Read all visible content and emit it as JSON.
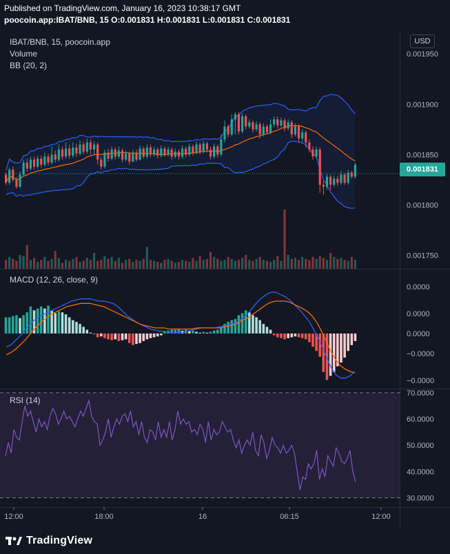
{
  "header": {
    "published": "Published on TradingView.com, January 16, 2023 10:38:17 GMT",
    "symbol_line": "poocoin.app:IBAT/BNB, 15  O:0.001831  H:0.001831  L:0.001831  C:0.001831"
  },
  "legend": {
    "symbol": "IBAT/BNB, 15, poocoin.app",
    "volume": "Volume",
    "bb": "BB (20, 2)",
    "macd": "MACD (12, 26, close, 9)",
    "rsi": "RSI (14)"
  },
  "currency_button": "USD",
  "last_price": "0.001831",
  "footer": {
    "brand": "TradingView"
  },
  "colors": {
    "background": "#131722",
    "up": "#26a69a",
    "down": "#ef5350",
    "bb_band": "#2962ff",
    "bb_basis": "#ff6d00",
    "macd_line": "#2962ff",
    "signal_line": "#ff6d00",
    "rsi_line": "#7e57c2",
    "rsi_band": "#2a2440"
  },
  "chart_data": [
    {
      "type": "candlestick",
      "title": "IBAT/BNB, 15, poocoin.app",
      "y_ticks": [
        "0.001950",
        "0.001900",
        "0.001850",
        "0.001800",
        "0.001750"
      ],
      "x_ticks": [
        "12:00",
        "18:00",
        "16",
        "06:15",
        "12:00"
      ],
      "ylim": [
        0.00174,
        0.00197
      ],
      "last_price": 0.001831,
      "candles": [
        [
          0.00183,
          0.001822,
          0.001832,
          0.00182
        ],
        [
          0.001822,
          0.001835,
          0.001837,
          0.00182
        ],
        [
          0.001835,
          0.001825,
          0.001838,
          0.001823
        ],
        [
          0.001825,
          0.001818,
          0.001828,
          0.001816
        ],
        [
          0.001818,
          0.00183,
          0.001833,
          0.001817
        ],
        [
          0.00183,
          0.001842,
          0.001845,
          0.001828
        ],
        [
          0.001842,
          0.001836,
          0.001846,
          0.001833
        ],
        [
          0.001836,
          0.001845,
          0.001848,
          0.001834
        ],
        [
          0.001845,
          0.001838,
          0.001848,
          0.001835
        ],
        [
          0.001838,
          0.001846,
          0.001849,
          0.001836
        ],
        [
          0.001846,
          0.00184,
          0.001849,
          0.001837
        ],
        [
          0.00184,
          0.001848,
          0.001852,
          0.001838
        ],
        [
          0.001848,
          0.001842,
          0.001851,
          0.001839
        ],
        [
          0.001842,
          0.00185,
          0.001858,
          0.00184
        ],
        [
          0.00185,
          0.001845,
          0.001854,
          0.001842
        ],
        [
          0.001845,
          0.001855,
          0.00186,
          0.001843
        ],
        [
          0.001855,
          0.001848,
          0.001858,
          0.001845
        ],
        [
          0.001848,
          0.001856,
          0.001862,
          0.001846
        ],
        [
          0.001856,
          0.001849,
          0.00186,
          0.001846
        ],
        [
          0.001849,
          0.001857,
          0.001862,
          0.001847
        ],
        [
          0.001857,
          0.001851,
          0.001861,
          0.001848
        ],
        [
          0.001851,
          0.00186,
          0.001864,
          0.001849
        ],
        [
          0.00186,
          0.001853,
          0.001863,
          0.00185
        ],
        [
          0.001853,
          0.001862,
          0.001866,
          0.001851
        ],
        [
          0.001862,
          0.001855,
          0.001865,
          0.00185
        ],
        [
          0.001855,
          0.00186,
          0.001863,
          0.00185
        ],
        [
          0.00186,
          0.001845,
          0.001862,
          0.00184
        ],
        [
          0.001845,
          0.001838,
          0.001848,
          0.001835
        ],
        [
          0.001838,
          0.001852,
          0.001855,
          0.001836
        ],
        [
          0.001852,
          0.001846,
          0.001856,
          0.001843
        ],
        [
          0.001846,
          0.001855,
          0.001858,
          0.001844
        ],
        [
          0.001855,
          0.001848,
          0.001857,
          0.001845
        ],
        [
          0.001848,
          0.001854,
          0.001858,
          0.001846
        ],
        [
          0.001854,
          0.001845,
          0.001856,
          0.001842
        ],
        [
          0.001845,
          0.001851,
          0.001854,
          0.001843
        ],
        [
          0.001851,
          0.001843,
          0.001853,
          0.00184
        ],
        [
          0.001843,
          0.001852,
          0.001855,
          0.001842
        ],
        [
          0.001852,
          0.001845,
          0.001855,
          0.001843
        ],
        [
          0.001845,
          0.001856,
          0.001859,
          0.001844
        ],
        [
          0.001856,
          0.001848,
          0.001858,
          0.001846
        ],
        [
          0.001848,
          0.001857,
          0.00186,
          0.001846
        ],
        [
          0.001857,
          0.00185,
          0.00186,
          0.001847
        ],
        [
          0.00185,
          0.001855,
          0.001858,
          0.001848
        ],
        [
          0.001855,
          0.001849,
          0.001857,
          0.001846
        ],
        [
          0.001849,
          0.001856,
          0.001859,
          0.001847
        ],
        [
          0.001856,
          0.00185,
          0.001858,
          0.001848
        ],
        [
          0.00185,
          0.001855,
          0.001858,
          0.001848
        ],
        [
          0.001855,
          0.001848,
          0.001857,
          0.001845
        ],
        [
          0.001848,
          0.001853,
          0.001856,
          0.001846
        ],
        [
          0.001853,
          0.001848,
          0.001855,
          0.001845
        ],
        [
          0.001848,
          0.001856,
          0.001859,
          0.001846
        ],
        [
          0.001856,
          0.00185,
          0.001858,
          0.001847
        ],
        [
          0.00185,
          0.001858,
          0.001861,
          0.001848
        ],
        [
          0.001858,
          0.001852,
          0.00186,
          0.001849
        ],
        [
          0.001852,
          0.00186,
          0.001863,
          0.00185
        ],
        [
          0.00186,
          0.001853,
          0.001862,
          0.00185
        ],
        [
          0.001853,
          0.001861,
          0.001864,
          0.001851
        ],
        [
          0.001861,
          0.001855,
          0.001863,
          0.001852
        ],
        [
          0.001855,
          0.001848,
          0.001858,
          0.001845
        ],
        [
          0.001848,
          0.001858,
          0.001861,
          0.001846
        ],
        [
          0.001858,
          0.00185,
          0.00186,
          0.001847
        ],
        [
          0.00185,
          0.001865,
          0.00187,
          0.001848
        ],
        [
          0.001865,
          0.001878,
          0.001884,
          0.001862
        ],
        [
          0.001878,
          0.00187,
          0.00188,
          0.001867
        ],
        [
          0.00187,
          0.001885,
          0.00189,
          0.001868
        ],
        [
          0.001885,
          0.00189,
          0.001892,
          0.00187
        ],
        [
          0.00189,
          0.001873,
          0.001892,
          0.00187
        ],
        [
          0.001873,
          0.001888,
          0.001891,
          0.001871
        ],
        [
          0.001888,
          0.001878,
          0.00189,
          0.001875
        ],
        [
          0.001878,
          0.001882,
          0.001885,
          0.001876
        ],
        [
          0.001882,
          0.001875,
          0.001884,
          0.001872
        ],
        [
          0.001875,
          0.00188,
          0.001883,
          0.001873
        ],
        [
          0.00188,
          0.00187,
          0.001882,
          0.001866
        ],
        [
          0.00187,
          0.001878,
          0.001881,
          0.001868
        ],
        [
          0.001878,
          0.001872,
          0.00188,
          0.00187
        ],
        [
          0.001872,
          0.00188,
          0.001885,
          0.00187
        ],
        [
          0.00188,
          0.001885,
          0.001888,
          0.001877
        ],
        [
          0.001885,
          0.001879,
          0.001888,
          0.001876
        ],
        [
          0.001879,
          0.001884,
          0.001887,
          0.001877
        ],
        [
          0.001884,
          0.001876,
          0.001886,
          0.001873
        ],
        [
          0.001876,
          0.001882,
          0.001885,
          0.001874
        ],
        [
          0.001882,
          0.00187,
          0.001884,
          0.001866
        ],
        [
          0.00187,
          0.001878,
          0.001881,
          0.001868
        ],
        [
          0.001878,
          0.001866,
          0.00188,
          0.001862
        ],
        [
          0.001866,
          0.001872,
          0.001875,
          0.001862
        ],
        [
          0.001872,
          0.001862,
          0.001874,
          0.001857
        ],
        [
          0.001862,
          0.001855,
          0.001865,
          0.001852
        ],
        [
          0.001855,
          0.001848,
          0.001858,
          0.001845
        ],
        [
          0.001848,
          0.001855,
          0.001858,
          0.001846
        ],
        [
          0.001855,
          0.00182,
          0.001857,
          0.001812
        ],
        [
          0.00182,
          0.001818,
          0.001824,
          0.00181
        ],
        [
          0.001818,
          0.001828,
          0.001831,
          0.001815
        ],
        [
          0.001828,
          0.00182,
          0.00183,
          0.001815
        ],
        [
          0.00182,
          0.001826,
          0.001829,
          0.001818
        ],
        [
          0.001826,
          0.001822,
          0.001829,
          0.001819
        ],
        [
          0.001822,
          0.00183,
          0.001834,
          0.00182
        ],
        [
          0.00183,
          0.001822,
          0.001832,
          0.00182
        ],
        [
          0.001822,
          0.001832,
          0.001835,
          0.00182
        ],
        [
          0.001832,
          0.001828,
          0.001834,
          0.001826
        ],
        [
          0.001828,
          0.00184,
          0.001842,
          0.001826
        ]
      ],
      "volume": [
        9,
        12,
        10,
        8,
        14,
        13,
        24,
        9,
        11,
        7,
        9,
        12,
        8,
        10,
        18,
        11,
        6,
        9,
        8,
        10,
        12,
        7,
        8,
        11,
        9,
        16,
        8,
        9,
        13,
        10,
        12,
        8,
        11,
        6,
        9,
        10,
        7,
        9,
        8,
        10,
        22,
        9,
        8,
        7,
        6,
        9,
        10,
        8,
        6,
        7,
        9,
        8,
        7,
        11,
        8,
        13,
        9,
        10,
        17,
        12,
        10,
        8,
        9,
        12,
        10,
        8,
        9,
        11,
        14,
        9,
        8,
        10,
        12,
        9,
        8,
        7,
        9,
        13,
        8,
        60,
        14,
        10,
        11,
        9,
        12,
        10,
        9,
        12,
        10,
        13,
        11,
        9,
        16,
        12,
        10,
        11,
        9,
        8,
        12,
        9
      ]
    },
    {
      "type": "macd",
      "title": "MACD (12, 26, close, 9)",
      "y_ticks": [
        "0.0000",
        "0.0000",
        "0.0000",
        "−0.0000",
        "−0.0000"
      ],
      "histogram": [
        0.56,
        0.56,
        0.6,
        0.63,
        0.53,
        0.63,
        0.73,
        0.93,
        0.8,
        0.86,
        0.93,
        0.86,
        0.96,
        0.8,
        0.7,
        0.76,
        0.73,
        0.66,
        0.56,
        0.46,
        0.4,
        0.33,
        0.23,
        0.13,
        0.03,
        -0.03,
        -0.13,
        -0.1,
        -0.16,
        -0.2,
        -0.23,
        -0.2,
        -0.26,
        -0.23,
        -0.2,
        -0.33,
        -0.4,
        -0.36,
        -0.33,
        -0.26,
        -0.2,
        -0.16,
        -0.13,
        -0.1,
        -0.06,
        0.06,
        0.1,
        0.13,
        0.13,
        0.16,
        0.1,
        0.13,
        0.1,
        0.1,
        0.06,
        0.03,
        0.06,
        0.03,
        0.06,
        0.1,
        0.13,
        0.2,
        0.33,
        0.4,
        0.46,
        0.5,
        0.63,
        0.7,
        0.8,
        0.73,
        0.63,
        0.56,
        0.46,
        0.33,
        0.23,
        0.13,
        -0.06,
        -0.13,
        -0.16,
        -0.2,
        -0.16,
        -0.13,
        -0.1,
        -0.13,
        -0.16,
        -0.2,
        -0.3,
        -0.46,
        -0.6,
        -0.8,
        -1.33,
        -1.6,
        -1.46,
        -1.33,
        -1.13,
        -1.0,
        -0.83,
        -0.6,
        -0.4,
        -0.26
      ],
      "macd": [
        -1.2,
        -1.0,
        -0.6,
        -0.2,
        0.3,
        0.8,
        1.2,
        1.5,
        1.7,
        1.9,
        2.1,
        2.3,
        2.5,
        2.7,
        2.9,
        3.0,
        3.1,
        3.1,
        3.1,
        3.0,
        2.9,
        2.9,
        2.8,
        2.7,
        2.4,
        2.0,
        1.6,
        1.3,
        1.0,
        0.8,
        0.6,
        0.4,
        0.3,
        0.2,
        0.2,
        0.1,
        0.1,
        0.1,
        0.1,
        0.2,
        0.3,
        0.4,
        0.5,
        0.5,
        0.5,
        0.5,
        0.6,
        0.7,
        0.8,
        0.9,
        1.1,
        1.4,
        1.8,
        2.3,
        2.8,
        3.2,
        3.5,
        3.7,
        3.7,
        3.5,
        3.3,
        3.0,
        2.6,
        2.2,
        1.7,
        1.2,
        0.5,
        -0.3,
        -1.2,
        -2.2,
        -3.1,
        -3.7,
        -4.0,
        -4.0,
        -3.8,
        -3.4
      ],
      "signal": [
        -1.9,
        -1.7,
        -1.4,
        -1.0,
        -0.6,
        -0.1,
        0.4,
        0.8,
        1.2,
        1.5,
        1.8,
        2.0,
        2.2,
        2.4,
        2.5,
        2.6,
        2.7,
        2.7,
        2.7,
        2.6,
        2.5,
        2.4,
        2.2,
        2.0,
        1.8,
        1.6,
        1.4,
        1.2,
        1.0,
        0.8,
        0.7,
        0.6,
        0.5,
        0.5,
        0.5,
        0.4,
        0.4,
        0.4,
        0.4,
        0.4,
        0.4,
        0.5,
        0.5,
        0.5,
        0.5,
        0.5,
        0.5,
        0.6,
        0.7,
        0.8,
        1.0,
        1.2,
        1.4,
        1.7,
        2.0,
        2.3,
        2.6,
        2.8,
        2.9,
        2.9,
        2.9,
        2.8,
        2.6,
        2.4,
        2.2,
        1.9,
        1.5,
        0.9,
        0.1,
        -0.8,
        -1.7,
        -2.4,
        -2.9,
        -3.2,
        -3.4,
        -3.5
      ]
    },
    {
      "type": "line",
      "title": "RSI (14)",
      "y_ticks": [
        "70.0000",
        "60.0000",
        "50.0000",
        "40.0000",
        "30.0000"
      ],
      "ylim": [
        27,
        71
      ],
      "band": [
        30,
        70
      ],
      "values": [
        46,
        51,
        47,
        56,
        53,
        52,
        59,
        65,
        61,
        63,
        59,
        55,
        60,
        57,
        59,
        56,
        61,
        64,
        62,
        58,
        60,
        63,
        60,
        61,
        59,
        57,
        60,
        63,
        61,
        64,
        67,
        61,
        59,
        58,
        50,
        52,
        55,
        60,
        53,
        57,
        60,
        58,
        61,
        62,
        59,
        63,
        57,
        59,
        54,
        59,
        53,
        51,
        56,
        55,
        52,
        59,
        53,
        56,
        53,
        59,
        52,
        56,
        63,
        58,
        60,
        58,
        59,
        55,
        56,
        54,
        58,
        56,
        51,
        59,
        52,
        56,
        54,
        55,
        59,
        57,
        55,
        56,
        52,
        49,
        52,
        47,
        50,
        52,
        50,
        55,
        48,
        46,
        54,
        51,
        45,
        48,
        53,
        50,
        49,
        47,
        50,
        47,
        48,
        50,
        47,
        40,
        33,
        38,
        37,
        43,
        41,
        43,
        48,
        37,
        41,
        38,
        46,
        44,
        42,
        49,
        47,
        44,
        43,
        45,
        48,
        40,
        36
      ]
    }
  ]
}
